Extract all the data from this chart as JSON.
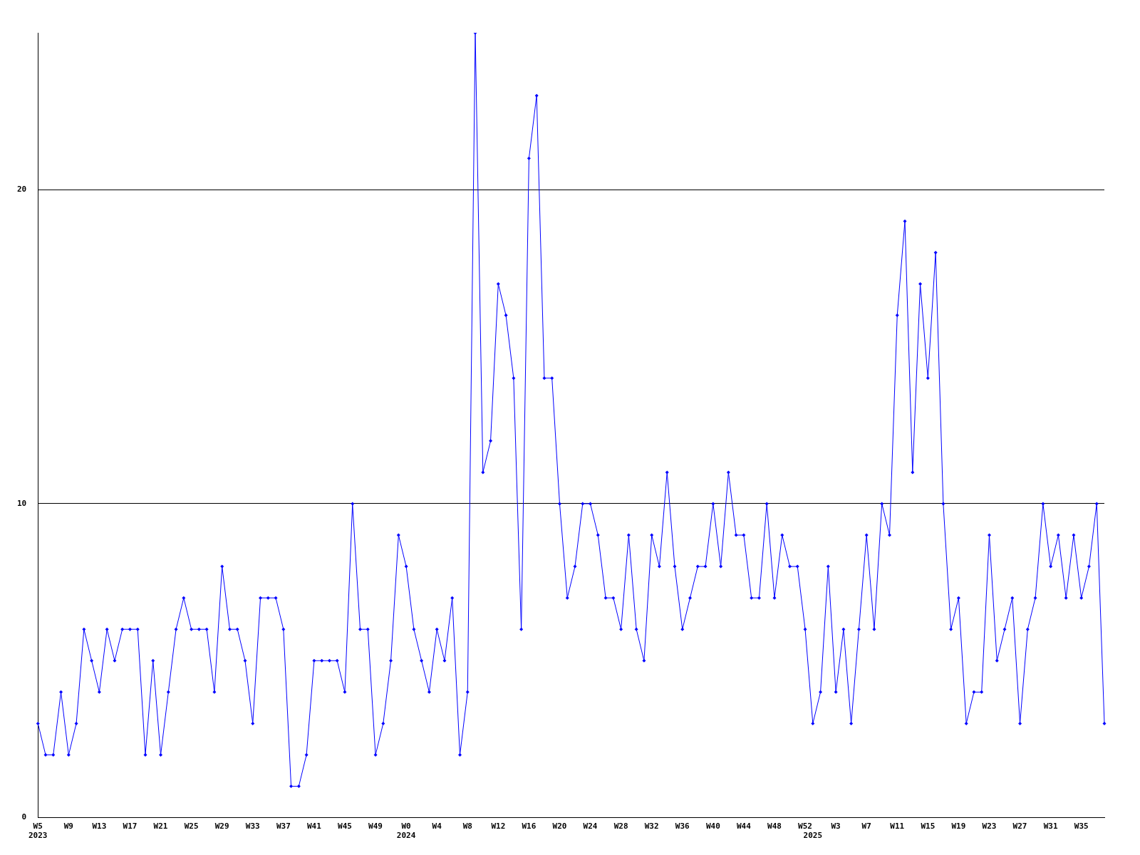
{
  "chart_data": {
    "type": "line",
    "categories": [
      "W5\n2023",
      null,
      null,
      null,
      "W9",
      null,
      null,
      null,
      "W13",
      null,
      null,
      null,
      "W17",
      null,
      null,
      null,
      "W21",
      null,
      null,
      null,
      "W25",
      null,
      null,
      null,
      "W29",
      null,
      null,
      null,
      "W33",
      null,
      null,
      null,
      "W37",
      null,
      null,
      null,
      "W41",
      null,
      null,
      null,
      "W45",
      null,
      null,
      null,
      "W49",
      null,
      null,
      null,
      "W0\n2024",
      null,
      null,
      null,
      "W4",
      null,
      null,
      null,
      "W8",
      null,
      null,
      null,
      "W12",
      null,
      null,
      null,
      "W16",
      null,
      null,
      null,
      "W20",
      null,
      null,
      null,
      "W24",
      null,
      null,
      null,
      "W28",
      null,
      null,
      null,
      "W32",
      null,
      null,
      null,
      "W36",
      null,
      null,
      null,
      "W40",
      null,
      null,
      null,
      "W44",
      null,
      null,
      null,
      "W48",
      null,
      null,
      null,
      "W52",
      "\n2025",
      null,
      null,
      "W3",
      null,
      null,
      null,
      "W7",
      null,
      null,
      null,
      "W11",
      null,
      null,
      null,
      "W15",
      null,
      null,
      null,
      "W19",
      null,
      null,
      null,
      "W23",
      null,
      null,
      null,
      "W27",
      null,
      null,
      null,
      "W31",
      null,
      null,
      null,
      "W35",
      null,
      null,
      null
    ],
    "values": [
      3,
      2,
      2,
      4,
      2,
      3,
      6,
      5,
      4,
      6,
      5,
      6,
      6,
      6,
      2,
      5,
      2,
      4,
      6,
      7,
      6,
      6,
      6,
      4,
      8,
      6,
      6,
      5,
      3,
      7,
      7,
      7,
      6,
      1,
      1,
      2,
      5,
      5,
      5,
      5,
      4,
      10,
      6,
      6,
      2,
      3,
      5,
      9,
      8,
      6,
      5,
      4,
      6,
      5,
      7,
      2,
      4,
      25,
      11,
      12,
      17,
      16,
      14,
      6,
      21,
      23,
      14,
      14,
      10,
      7,
      8,
      10,
      10,
      9,
      7,
      7,
      6,
      9,
      6,
      5,
      9,
      8,
      11,
      8,
      6,
      7,
      8,
      8,
      10,
      8,
      11,
      9,
      9,
      7,
      7,
      10,
      7,
      9,
      8,
      8,
      6,
      3,
      4,
      8,
      4,
      6,
      3,
      6,
      9,
      6,
      10,
      9,
      16,
      19,
      11,
      17,
      14,
      18,
      10,
      6,
      7,
      3,
      4,
      4,
      9,
      5,
      6,
      7,
      3,
      6,
      7,
      10,
      8,
      9,
      7,
      9,
      7,
      8,
      10,
      3
    ],
    "color": "#0000ff",
    "ylim": [
      0,
      25
    ],
    "yticks": [
      0,
      10,
      20
    ],
    "grid": "y",
    "legend": false,
    "marker": "diamond",
    "line_style": "solid"
  }
}
